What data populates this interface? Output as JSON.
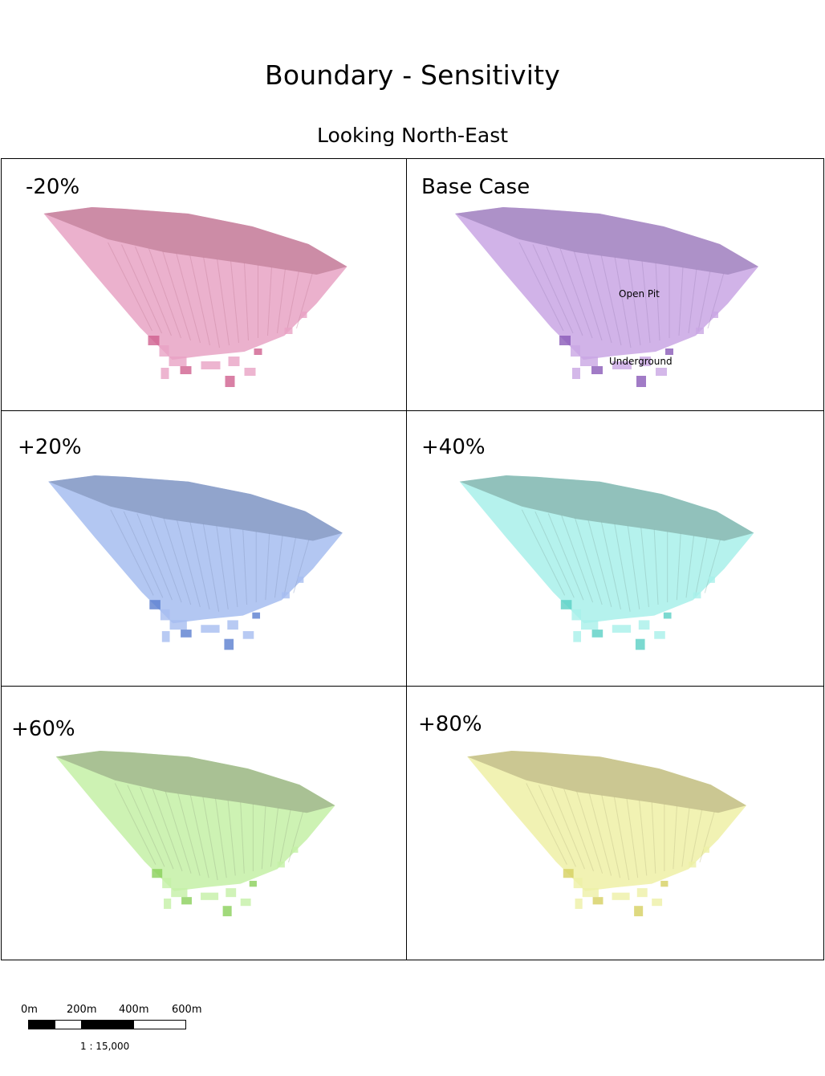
{
  "title": "Boundary - Sensitivity",
  "subtitle": "Looking North-East",
  "panels": [
    {
      "label": "-20%",
      "color": "#e8a3c4",
      "shade": "#c7869f",
      "dark": "#d0608e"
    },
    {
      "label": "Base Case",
      "color": "#c9a6e4",
      "shade": "#a78bc2",
      "dark": "#8a5ab8"
    },
    {
      "label": "+20%",
      "color": "#a6bdf0",
      "shade": "#8b9dc5",
      "dark": "#5a7ed0"
    },
    {
      "label": "+40%",
      "color": "#a8f0ea",
      "shade": "#8bb8b2",
      "dark": "#5ad0c4"
    },
    {
      "label": "+60%",
      "color": "#c4f0a6",
      "shade": "#a2b88e",
      "dark": "#8ad05a"
    },
    {
      "label": "+80%",
      "color": "#eef0a6",
      "shade": "#c4c08c",
      "dark": "#d6d060"
    }
  ],
  "annotations": {
    "open_pit": "Open Pit",
    "underground": "Underground"
  },
  "scale": {
    "ticks": [
      "0m",
      "200m",
      "400m",
      "600m"
    ],
    "ratio": "1 : 15,000"
  },
  "icons": {
    "pit_shell": "pit-shell-icon",
    "scale_bar": "scale-bar-icon"
  }
}
